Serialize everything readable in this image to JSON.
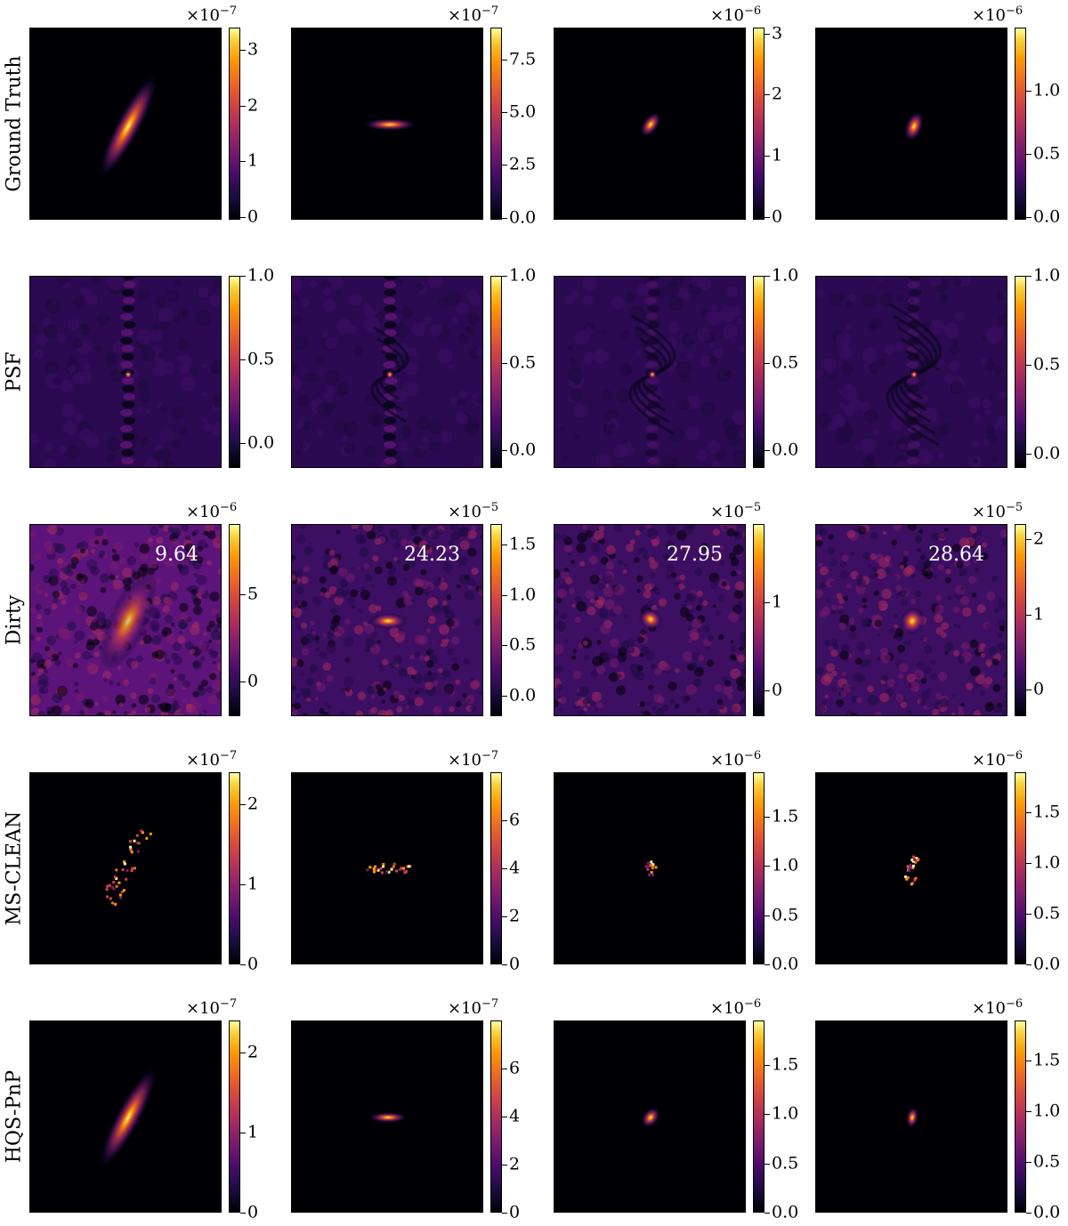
{
  "chart_data": {
    "type": "heatmap",
    "colormap": "inferno",
    "grid": false,
    "rows": [
      {
        "label": "Ground Truth",
        "panels": [
          {
            "exp": "−7",
            "ticks": [
              {
                "v": 0,
                "t": "0"
              },
              {
                "v": 1,
                "t": "1"
              },
              {
                "v": 2,
                "t": "2"
              },
              {
                "v": 3,
                "t": "3"
              }
            ],
            "vmin": -0.05,
            "vmax": 3.4,
            "source": "galaxy-1"
          },
          {
            "exp": "−7",
            "ticks": [
              {
                "v": 0,
                "t": "0.0"
              },
              {
                "v": 2.5,
                "t": "2.5"
              },
              {
                "v": 5,
                "t": "5.0"
              },
              {
                "v": 7.5,
                "t": "7.5"
              }
            ],
            "vmin": -0.1,
            "vmax": 9.0,
            "source": "galaxy-2"
          },
          {
            "exp": "−6",
            "ticks": [
              {
                "v": 0,
                "t": "0"
              },
              {
                "v": 1,
                "t": "1"
              },
              {
                "v": 2,
                "t": "2"
              },
              {
                "v": 3,
                "t": "3"
              }
            ],
            "vmin": -0.05,
            "vmax": 3.1,
            "source": "galaxy-3"
          },
          {
            "exp": "−6",
            "ticks": [
              {
                "v": 0,
                "t": "0.0"
              },
              {
                "v": 0.5,
                "t": "0.5"
              },
              {
                "v": 1,
                "t": "1.0"
              }
            ],
            "vmin": -0.02,
            "vmax": 1.5,
            "source": "galaxy-4"
          }
        ]
      },
      {
        "label": "PSF",
        "panels": [
          {
            "exp": "",
            "ticks": [
              {
                "v": 0,
                "t": "0.0"
              },
              {
                "v": 0.5,
                "t": "0.5"
              },
              {
                "v": 1,
                "t": "1.0"
              }
            ],
            "vmin": -0.15,
            "vmax": 1.0
          },
          {
            "exp": "",
            "ticks": [
              {
                "v": 0,
                "t": "0.0"
              },
              {
                "v": 0.5,
                "t": "0.5"
              },
              {
                "v": 1,
                "t": "1.0"
              }
            ],
            "vmin": -0.1,
            "vmax": 1.0
          },
          {
            "exp": "",
            "ticks": [
              {
                "v": 0,
                "t": "0.0"
              },
              {
                "v": 0.5,
                "t": "0.5"
              },
              {
                "v": 1,
                "t": "1.0"
              }
            ],
            "vmin": -0.1,
            "vmax": 1.0
          },
          {
            "exp": "",
            "ticks": [
              {
                "v": 0,
                "t": "0.0"
              },
              {
                "v": 0.5,
                "t": "0.5"
              },
              {
                "v": 1,
                "t": "1.0"
              }
            ],
            "vmin": -0.08,
            "vmax": 1.0
          }
        ]
      },
      {
        "label": "Dirty",
        "panels": [
          {
            "exp": "−6",
            "ticks": [
              {
                "v": 0,
                "t": "0"
              },
              {
                "v": 5,
                "t": "5"
              }
            ],
            "vmin": -2.0,
            "vmax": 9.0,
            "psnr": "9.64"
          },
          {
            "exp": "−5",
            "ticks": [
              {
                "v": 0,
                "t": "0.0"
              },
              {
                "v": 0.5,
                "t": "0.5"
              },
              {
                "v": 1,
                "t": "1.0"
              },
              {
                "v": 1.5,
                "t": "1.5"
              }
            ],
            "vmin": -0.2,
            "vmax": 1.7,
            "psnr": "24.23"
          },
          {
            "exp": "−5",
            "ticks": [
              {
                "v": 0,
                "t": "0"
              },
              {
                "v": 1,
                "t": "1"
              }
            ],
            "vmin": -0.3,
            "vmax": 1.9,
            "psnr": "27.95"
          },
          {
            "exp": "−5",
            "ticks": [
              {
                "v": 0,
                "t": "0"
              },
              {
                "v": 1,
                "t": "1"
              },
              {
                "v": 2,
                "t": "2"
              }
            ],
            "vmin": -0.35,
            "vmax": 2.2,
            "psnr": "28.64"
          }
        ]
      },
      {
        "label": "MS-CLEAN",
        "panels": [
          {
            "exp": "−7",
            "ticks": [
              {
                "v": 0,
                "t": "0"
              },
              {
                "v": 1,
                "t": "1"
              },
              {
                "v": 2,
                "t": "2"
              }
            ],
            "vmin": 0,
            "vmax": 2.4
          },
          {
            "exp": "−7",
            "ticks": [
              {
                "v": 0,
                "t": "0"
              },
              {
                "v": 2,
                "t": "2"
              },
              {
                "v": 4,
                "t": "4"
              },
              {
                "v": 6,
                "t": "6"
              }
            ],
            "vmin": 0,
            "vmax": 8.0
          },
          {
            "exp": "−6",
            "ticks": [
              {
                "v": 0,
                "t": "0.0"
              },
              {
                "v": 0.5,
                "t": "0.5"
              },
              {
                "v": 1,
                "t": "1.0"
              },
              {
                "v": 1.5,
                "t": "1.5"
              }
            ],
            "vmin": 0,
            "vmax": 1.95
          },
          {
            "exp": "−6",
            "ticks": [
              {
                "v": 0,
                "t": "0.0"
              },
              {
                "v": 0.5,
                "t": "0.5"
              },
              {
                "v": 1,
                "t": "1.0"
              },
              {
                "v": 1.5,
                "t": "1.5"
              }
            ],
            "vmin": 0,
            "vmax": 1.9
          }
        ]
      },
      {
        "label": "HQS-PnP",
        "panels": [
          {
            "exp": "−7",
            "ticks": [
              {
                "v": 0,
                "t": "0"
              },
              {
                "v": 1,
                "t": "1"
              },
              {
                "v": 2,
                "t": "2"
              }
            ],
            "vmin": 0,
            "vmax": 2.4
          },
          {
            "exp": "−7",
            "ticks": [
              {
                "v": 0,
                "t": "0"
              },
              {
                "v": 2,
                "t": "2"
              },
              {
                "v": 4,
                "t": "4"
              },
              {
                "v": 6,
                "t": "6"
              }
            ],
            "vmin": 0,
            "vmax": 8.0
          },
          {
            "exp": "−6",
            "ticks": [
              {
                "v": 0,
                "t": "0.0"
              },
              {
                "v": 0.5,
                "t": "0.5"
              },
              {
                "v": 1,
                "t": "1.0"
              },
              {
                "v": 1.5,
                "t": "1.5"
              }
            ],
            "vmin": 0,
            "vmax": 1.95
          },
          {
            "exp": "−6",
            "ticks": [
              {
                "v": 0,
                "t": "0.0"
              },
              {
                "v": 0.5,
                "t": "0.5"
              },
              {
                "v": 1,
                "t": "1.0"
              },
              {
                "v": 1.5,
                "t": "1.5"
              }
            ],
            "vmin": 0,
            "vmax": 1.9
          }
        ]
      }
    ]
  }
}
